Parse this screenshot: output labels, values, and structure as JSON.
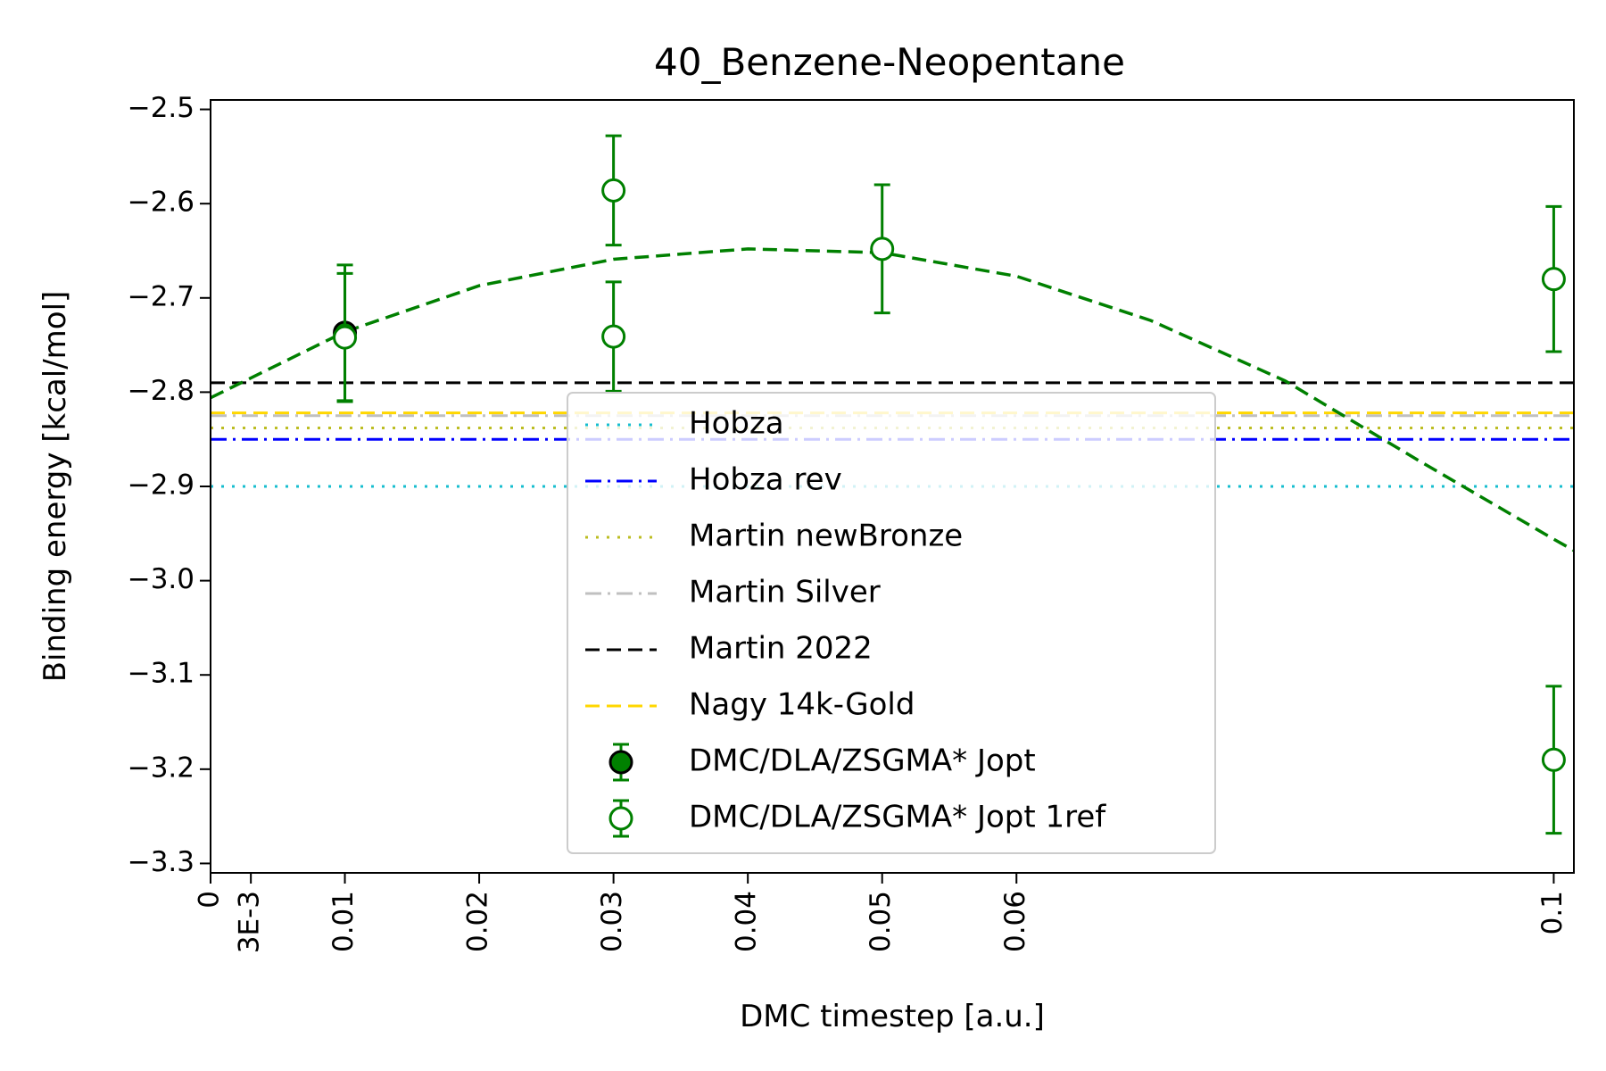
{
  "chart_data": {
    "type": "scatter",
    "title": "40_Benzene-Neopentane",
    "xlabel": "DMC timestep [a.u.]",
    "ylabel": "Binding energy [kcal/mol]",
    "xlim": [
      0,
      0.1015
    ],
    "ylim": [
      -3.31,
      -2.49
    ],
    "x_ticks": [
      {
        "value": 0,
        "label": "0"
      },
      {
        "value": 0.003,
        "label": "3E-3"
      },
      {
        "value": 0.01,
        "label": "0.01"
      },
      {
        "value": 0.02,
        "label": "0.02"
      },
      {
        "value": 0.03,
        "label": "0.03"
      },
      {
        "value": 0.04,
        "label": "0.04"
      },
      {
        "value": 0.05,
        "label": "0.05"
      },
      {
        "value": 0.06,
        "label": "0.06"
      },
      {
        "value": 0.1,
        "label": "0.1"
      }
    ],
    "y_ticks": [
      {
        "value": -2.5,
        "label": "−2.5"
      },
      {
        "value": -2.6,
        "label": "−2.6"
      },
      {
        "value": -2.7,
        "label": "−2.7"
      },
      {
        "value": -2.8,
        "label": "−2.8"
      },
      {
        "value": -2.9,
        "label": "−2.9"
      },
      {
        "value": -3.0,
        "label": "−3.0"
      },
      {
        "value": -3.1,
        "label": "−3.1"
      },
      {
        "value": -3.2,
        "label": "−3.2"
      },
      {
        "value": -3.3,
        "label": "−3.3"
      }
    ],
    "reference_lines": [
      {
        "name": "Hobza",
        "y": -2.9,
        "color": "#17becf",
        "style": "dotted"
      },
      {
        "name": "Hobza rev",
        "y": -2.85,
        "color": "#0000ff",
        "style": "dashdot"
      },
      {
        "name": "Martin newBronze",
        "y": -2.838,
        "color": "#bcbd22",
        "style": "dotted"
      },
      {
        "name": "Martin Silver",
        "y": -2.825,
        "color": "#c0c0c0",
        "style": "dashdot"
      },
      {
        "name": "Martin 2022",
        "y": -2.79,
        "color": "#000000",
        "style": "dashed"
      },
      {
        "name": "Nagy 14k-Gold",
        "y": -2.822,
        "color": "#ffd700",
        "style": "dashed"
      }
    ],
    "series": [
      {
        "name": "DMC/DLA/ZSGMA* Jopt",
        "marker": "filled-circle",
        "color": "#008000",
        "points": [
          {
            "x": 0.01,
            "y": -2.737,
            "err": 0.072
          }
        ]
      },
      {
        "name": "DMC/DLA/ZSGMA* Jopt 1ref",
        "marker": "open-circle",
        "color": "#008000",
        "points": [
          {
            "x": 0.01,
            "y": -2.742,
            "err": 0.068
          },
          {
            "x": 0.03,
            "y": -2.586,
            "err": 0.058
          },
          {
            "x": 0.03,
            "y": -2.741,
            "err": 0.058
          },
          {
            "x": 0.05,
            "y": -2.648,
            "err": 0.068
          },
          {
            "x": 0.1,
            "y": -2.68,
            "err": 0.077
          },
          {
            "x": 0.1,
            "y": -3.19,
            "err": 0.078
          }
        ]
      }
    ],
    "fit": {
      "type": "quadratic",
      "color": "#008000",
      "style": "dashed",
      "x": [
        0,
        0.01,
        0.02,
        0.03,
        0.04,
        0.05,
        0.06,
        0.07,
        0.08,
        0.09,
        0.1,
        0.1015
      ],
      "y": [
        -2.806,
        -2.736,
        -2.687,
        -2.659,
        -2.648,
        -2.652,
        -2.677,
        -2.724,
        -2.788,
        -2.873,
        -2.956,
        -2.968
      ]
    },
    "legend_position": "center",
    "grid": false
  }
}
